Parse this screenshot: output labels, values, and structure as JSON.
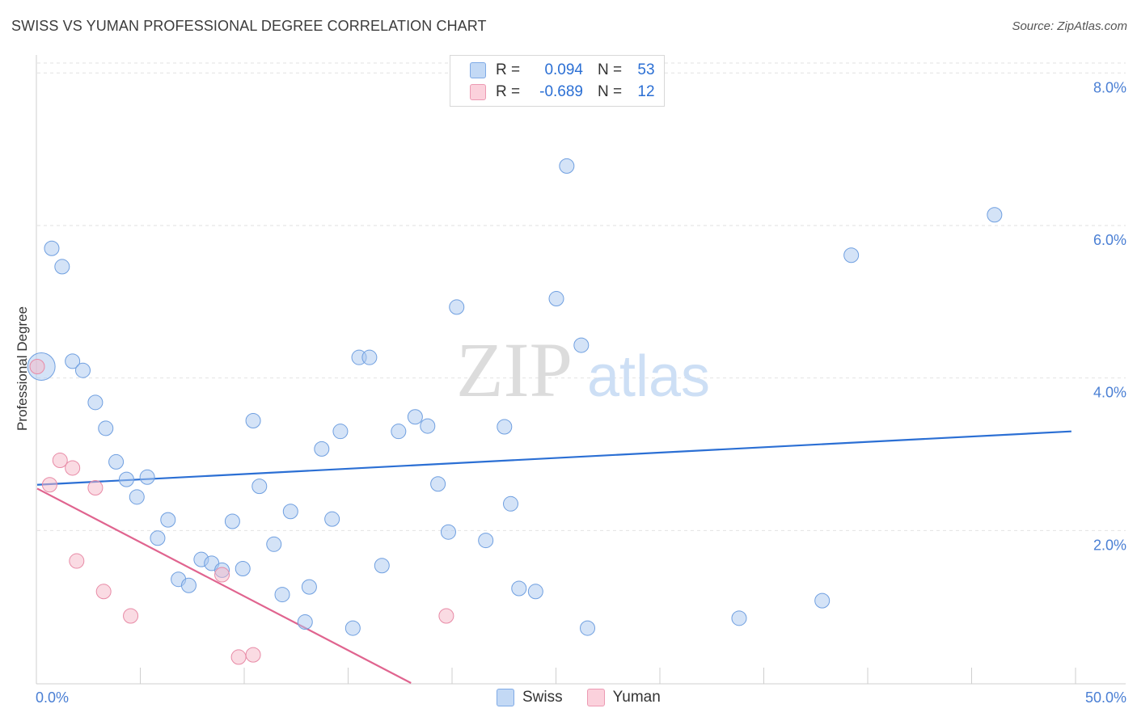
{
  "header": {
    "title": "SWISS VS YUMAN PROFESSIONAL DEGREE CORRELATION CHART",
    "source": "Source: ZipAtlas.com"
  },
  "watermark": {
    "zip": "ZIP",
    "atlas": "atlas"
  },
  "legend": {
    "rows": [
      {
        "r_label": "R =",
        "r_value": "0.094",
        "n_label": "N =",
        "n_value": "53",
        "color": "#a9c8f0"
      },
      {
        "r_label": "R =",
        "r_value": "-0.689",
        "n_label": "N =",
        "n_value": "12",
        "color": "#f5b8c8"
      }
    ]
  },
  "bottom_legend": [
    {
      "label": "Swiss",
      "color": "#a9c8f0"
    },
    {
      "label": "Yuman",
      "color": "#f5b8c8"
    }
  ],
  "chart_data": {
    "type": "scatter",
    "title": "SWISS VS YUMAN PROFESSIONAL DEGREE CORRELATION CHART",
    "xlabel": "",
    "ylabel": "Professional Degree",
    "xlim": [
      0,
      50
    ],
    "ylim": [
      0,
      8.3
    ],
    "x_tick_labels": [
      {
        "value": 0,
        "label": "0.0%"
      },
      {
        "value": 50,
        "label": "50.0%"
      }
    ],
    "y_tick_labels": [
      {
        "value": 2,
        "label": "2.0%"
      },
      {
        "value": 4,
        "label": "4.0%"
      },
      {
        "value": 6,
        "label": "6.0%"
      },
      {
        "value": 8,
        "label": "8.0%"
      }
    ],
    "y_grid": [
      2,
      4,
      6,
      8
    ],
    "series": [
      {
        "name": "Swiss",
        "color": "#a9c8f0",
        "stroke": "#6f9fe0",
        "trend_color": "#2b6fd4",
        "trend": {
          "x": [
            0,
            49.8
          ],
          "y": [
            2.6,
            3.3
          ]
        },
        "points": [
          {
            "x": 0.2,
            "y": 4.15,
            "big": true
          },
          {
            "x": 0.7,
            "y": 5.7
          },
          {
            "x": 1.2,
            "y": 5.46
          },
          {
            "x": 1.7,
            "y": 4.22
          },
          {
            "x": 2.2,
            "y": 4.1
          },
          {
            "x": 2.8,
            "y": 3.68
          },
          {
            "x": 3.3,
            "y": 3.34
          },
          {
            "x": 3.8,
            "y": 2.9
          },
          {
            "x": 4.3,
            "y": 2.67
          },
          {
            "x": 4.8,
            "y": 2.44
          },
          {
            "x": 5.3,
            "y": 2.7
          },
          {
            "x": 5.8,
            "y": 1.9
          },
          {
            "x": 6.3,
            "y": 2.14
          },
          {
            "x": 6.8,
            "y": 1.36
          },
          {
            "x": 7.3,
            "y": 1.28
          },
          {
            "x": 7.9,
            "y": 1.62
          },
          {
            "x": 8.4,
            "y": 1.57
          },
          {
            "x": 8.9,
            "y": 1.48
          },
          {
            "x": 9.4,
            "y": 2.12
          },
          {
            "x": 9.9,
            "y": 1.5
          },
          {
            "x": 10.4,
            "y": 3.44
          },
          {
            "x": 10.7,
            "y": 2.58
          },
          {
            "x": 11.4,
            "y": 1.82
          },
          {
            "x": 11.8,
            "y": 1.16
          },
          {
            "x": 12.2,
            "y": 2.25
          },
          {
            "x": 12.9,
            "y": 0.8
          },
          {
            "x": 13.1,
            "y": 1.26
          },
          {
            "x": 13.7,
            "y": 3.07
          },
          {
            "x": 14.2,
            "y": 2.15
          },
          {
            "x": 14.6,
            "y": 3.3
          },
          {
            "x": 15.2,
            "y": 0.72
          },
          {
            "x": 15.5,
            "y": 4.27
          },
          {
            "x": 16.0,
            "y": 4.27
          },
          {
            "x": 16.6,
            "y": 1.54
          },
          {
            "x": 17.4,
            "y": 3.3
          },
          {
            "x": 18.2,
            "y": 3.49
          },
          {
            "x": 18.8,
            "y": 3.37
          },
          {
            "x": 19.3,
            "y": 2.61
          },
          {
            "x": 19.8,
            "y": 1.98
          },
          {
            "x": 20.2,
            "y": 4.93
          },
          {
            "x": 21.6,
            "y": 1.87
          },
          {
            "x": 22.5,
            "y": 3.36
          },
          {
            "x": 22.8,
            "y": 2.35
          },
          {
            "x": 23.2,
            "y": 1.24
          },
          {
            "x": 24.0,
            "y": 1.2
          },
          {
            "x": 25.0,
            "y": 5.04
          },
          {
            "x": 25.5,
            "y": 6.78
          },
          {
            "x": 26.2,
            "y": 4.43
          },
          {
            "x": 26.5,
            "y": 0.72
          },
          {
            "x": 33.8,
            "y": 0.85
          },
          {
            "x": 37.8,
            "y": 1.08
          },
          {
            "x": 39.2,
            "y": 5.61
          },
          {
            "x": 46.1,
            "y": 6.14
          }
        ]
      },
      {
        "name": "Yuman",
        "color": "#f5b8c8",
        "stroke": "#e88aa6",
        "trend_color": "#e0648f",
        "trend": {
          "x": [
            0,
            18.0
          ],
          "y": [
            2.55,
            0.0
          ]
        },
        "points": [
          {
            "x": 0.0,
            "y": 4.15
          },
          {
            "x": 0.6,
            "y": 2.6
          },
          {
            "x": 1.1,
            "y": 2.92
          },
          {
            "x": 1.7,
            "y": 2.82
          },
          {
            "x": 1.9,
            "y": 1.6
          },
          {
            "x": 2.8,
            "y": 2.56
          },
          {
            "x": 3.2,
            "y": 1.2
          },
          {
            "x": 4.5,
            "y": 0.88
          },
          {
            "x": 8.9,
            "y": 1.42
          },
          {
            "x": 9.7,
            "y": 0.34
          },
          {
            "x": 10.4,
            "y": 0.37
          },
          {
            "x": 19.7,
            "y": 0.88
          }
        ]
      }
    ]
  }
}
